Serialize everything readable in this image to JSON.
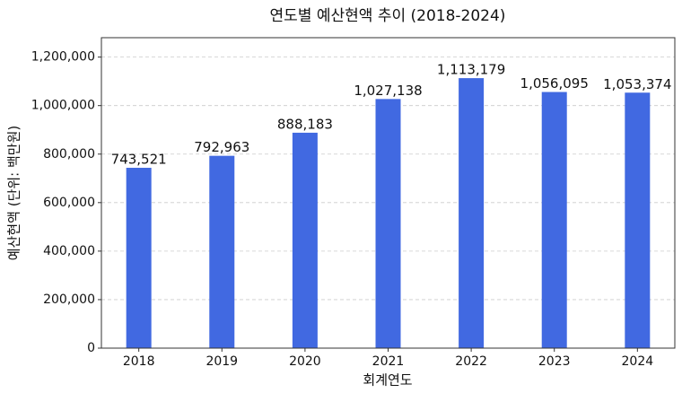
{
  "chart_data": {
    "type": "bar",
    "title": "연도별 예산현액 추이 (2018-2024)",
    "x_label": "회계연도",
    "y_label": "예산현액 (단위: 백만원)",
    "categories": [
      "2018",
      "2019",
      "2020",
      "2021",
      "2022",
      "2023",
      "2024"
    ],
    "values": [
      743521,
      792963,
      888183,
      1027138,
      1113179,
      1056095,
      1053374
    ],
    "value_labels": [
      "743,521",
      "792,963",
      "888,183",
      "1,027,138",
      "1,113,179",
      "1,056,095",
      "1,053,374"
    ],
    "color": "#4169e1",
    "ylim": [
      0,
      1280000
    ],
    "yticks": [
      0,
      {
        "value": 200000,
        "label": "200,000"
      },
      {
        "value": 400000,
        "label": "400,000"
      },
      {
        "value": 600000,
        "label": "600,000"
      },
      {
        "value": 800000,
        "label": "800,000"
      },
      {
        "value": 1000000,
        "label": "1,000,000"
      },
      {
        "value": 1200000,
        "label": "1,200,000"
      }
    ],
    "grid": true
  }
}
